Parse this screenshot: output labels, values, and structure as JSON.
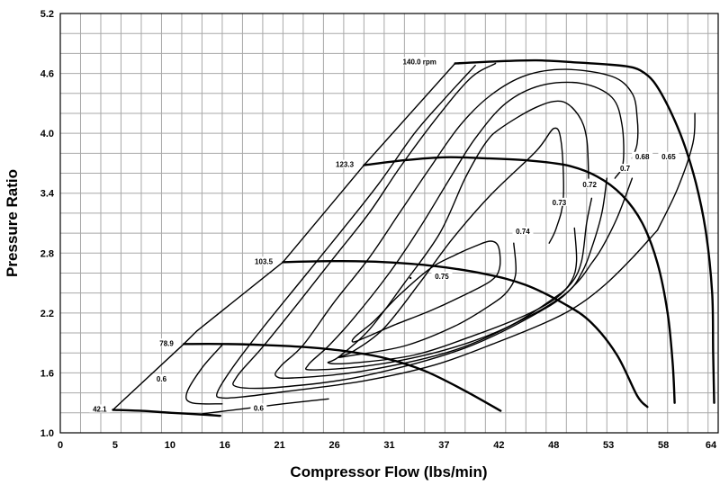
{
  "chart_data": {
    "type": "line",
    "title": "",
    "xlabel": "Compressor Flow (lbs/min)",
    "ylabel": "Pressure Ratio",
    "xlim": [
      0,
      65
    ],
    "ylim": [
      1.0,
      5.2
    ],
    "x_tick_labels": [
      "0",
      "5",
      "10",
      "16",
      "21",
      "26",
      "31",
      "37",
      "42",
      "48",
      "53",
      "58",
      "64"
    ],
    "y_tick_labels": [
      "1.0",
      "1.6",
      "2.2",
      "2.8",
      "3.4",
      "4.0",
      "4.6",
      "5.2"
    ],
    "grid": true,
    "surge_line": [
      [
        5.2,
        1.23
      ],
      [
        12.2,
        1.89
      ],
      [
        13.5,
        2.02
      ],
      [
        22.0,
        2.71
      ],
      [
        30.0,
        3.68
      ],
      [
        39.0,
        4.7
      ]
    ],
    "speed_lines": [
      {
        "label": "42.1",
        "points": [
          [
            5.2,
            1.23
          ],
          [
            8.0,
            1.22
          ],
          [
            11.0,
            1.2
          ],
          [
            14.5,
            1.18
          ],
          [
            15.8,
            1.17
          ]
        ]
      },
      {
        "label": "78.9",
        "points": [
          [
            12.2,
            1.89
          ],
          [
            16.0,
            1.89
          ],
          [
            20.0,
            1.88
          ],
          [
            24.0,
            1.86
          ],
          [
            28.0,
            1.82
          ],
          [
            32.0,
            1.75
          ],
          [
            36.0,
            1.62
          ],
          [
            40.0,
            1.42
          ],
          [
            43.5,
            1.22
          ]
        ]
      },
      {
        "label": "103.5",
        "points": [
          [
            22.0,
            2.71
          ],
          [
            27.0,
            2.72
          ],
          [
            32.0,
            2.71
          ],
          [
            37.0,
            2.67
          ],
          [
            42.0,
            2.59
          ],
          [
            46.0,
            2.48
          ],
          [
            50.0,
            2.28
          ],
          [
            52.5,
            2.1
          ],
          [
            55.0,
            1.78
          ],
          [
            57.0,
            1.37
          ],
          [
            58.0,
            1.26
          ]
        ]
      },
      {
        "label": "123.3",
        "points": [
          [
            30.0,
            3.68
          ],
          [
            34.0,
            3.73
          ],
          [
            38.0,
            3.76
          ],
          [
            42.0,
            3.75
          ],
          [
            46.0,
            3.73
          ],
          [
            50.0,
            3.68
          ],
          [
            53.0,
            3.57
          ],
          [
            55.5,
            3.38
          ],
          [
            57.5,
            3.1
          ],
          [
            59.0,
            2.7
          ],
          [
            60.0,
            2.2
          ],
          [
            60.5,
            1.7
          ],
          [
            60.7,
            1.3
          ]
        ]
      },
      {
        "label": "140.0 rpm",
        "points": [
          [
            39.0,
            4.7
          ],
          [
            43.0,
            4.72
          ],
          [
            47.0,
            4.73
          ],
          [
            51.0,
            4.71
          ],
          [
            54.0,
            4.69
          ],
          [
            56.0,
            4.67
          ],
          [
            57.3,
            4.63
          ],
          [
            58.6,
            4.52
          ],
          [
            60.0,
            4.28
          ],
          [
            61.5,
            3.93
          ],
          [
            62.8,
            3.5
          ],
          [
            63.8,
            3.0
          ],
          [
            64.4,
            2.4
          ],
          [
            64.5,
            1.8
          ],
          [
            64.6,
            1.3
          ]
        ]
      }
    ],
    "efficiency_islands": [
      {
        "label": "0.75",
        "closed": true,
        "points": [
          [
            36.6,
            2.65
          ],
          [
            39.0,
            2.78
          ],
          [
            41.0,
            2.87
          ],
          [
            42.5,
            2.92
          ],
          [
            43.3,
            2.86
          ],
          [
            43.4,
            2.65
          ],
          [
            42.5,
            2.52
          ],
          [
            39.5,
            2.36
          ],
          [
            36.5,
            2.22
          ],
          [
            33.0,
            2.08
          ],
          [
            30.5,
            1.97
          ],
          [
            29.0,
            1.91
          ],
          [
            29.1,
            1.96
          ],
          [
            31.0,
            2.12
          ],
          [
            33.5,
            2.38
          ]
        ]
      },
      {
        "label": "0.74",
        "closed": false,
        "points": [
          [
            44.8,
            2.9
          ],
          [
            45.0,
            2.6
          ],
          [
            44.2,
            2.42
          ],
          [
            42.5,
            2.28
          ],
          [
            39.0,
            2.07
          ],
          [
            34.0,
            1.87
          ],
          [
            28.5,
            1.77
          ],
          [
            27.5,
            1.76
          ],
          [
            29.0,
            1.82
          ],
          [
            32.0,
            2.05
          ],
          [
            35.5,
            2.5
          ],
          [
            38.8,
            2.95
          ],
          [
            42.5,
            3.38
          ],
          [
            47.0,
            3.82
          ],
          [
            48.8,
            4.05
          ],
          [
            49.5,
            3.9
          ],
          [
            49.7,
            3.35
          ],
          [
            49.0,
            3.05
          ],
          [
            48.3,
            2.9
          ]
        ]
      },
      {
        "label": "0.73",
        "closed": false,
        "points": [
          [
            50.8,
            3.05
          ],
          [
            51.0,
            2.72
          ],
          [
            50.5,
            2.52
          ],
          [
            49.0,
            2.35
          ],
          [
            46.0,
            2.18
          ],
          [
            41.0,
            1.98
          ],
          [
            35.0,
            1.78
          ],
          [
            29.0,
            1.7
          ],
          [
            26.5,
            1.7
          ],
          [
            27.5,
            1.76
          ],
          [
            30.5,
            2.03
          ],
          [
            34.0,
            2.5
          ],
          [
            37.5,
            3.0
          ],
          [
            40.0,
            3.55
          ],
          [
            42.0,
            3.9
          ],
          [
            43.5,
            4.05
          ],
          [
            47.0,
            4.26
          ],
          [
            49.5,
            4.32
          ],
          [
            51.2,
            4.18
          ],
          [
            52.0,
            3.95
          ],
          [
            52.2,
            3.55
          ]
        ]
      },
      {
        "label": "0.72",
        "closed": false,
        "points": [
          [
            52.5,
            3.35
          ],
          [
            52.0,
            3.1
          ],
          [
            51.5,
            2.72
          ],
          [
            50.5,
            2.5
          ],
          [
            48.5,
            2.33
          ],
          [
            44.0,
            2.05
          ],
          [
            38.0,
            1.83
          ],
          [
            31.0,
            1.68
          ],
          [
            25.0,
            1.63
          ],
          [
            24.5,
            1.68
          ],
          [
            26.5,
            1.87
          ],
          [
            29.0,
            2.15
          ],
          [
            32.5,
            2.6
          ],
          [
            35.5,
            3.05
          ],
          [
            38.5,
            3.55
          ],
          [
            41.0,
            3.95
          ],
          [
            44.0,
            4.3
          ],
          [
            47.5,
            4.48
          ],
          [
            51.5,
            4.5
          ],
          [
            54.5,
            4.36
          ],
          [
            55.5,
            4.08
          ],
          [
            55.6,
            3.7
          ],
          [
            54.8,
            3.55
          ]
        ]
      },
      {
        "label": "0.7",
        "closed": false,
        "points": [
          [
            54.0,
            3.55
          ],
          [
            53.5,
            3.2
          ],
          [
            52.5,
            2.85
          ],
          [
            51.5,
            2.6
          ],
          [
            50.0,
            2.4
          ],
          [
            46.0,
            2.15
          ],
          [
            39.0,
            1.83
          ],
          [
            30.0,
            1.62
          ],
          [
            23.0,
            1.55
          ],
          [
            21.3,
            1.57
          ],
          [
            21.8,
            1.67
          ],
          [
            24.0,
            1.88
          ],
          [
            27.0,
            2.3
          ],
          [
            30.5,
            2.75
          ],
          [
            33.5,
            3.2
          ],
          [
            36.5,
            3.65
          ],
          [
            39.5,
            4.08
          ],
          [
            42.5,
            4.38
          ],
          [
            46.0,
            4.58
          ],
          [
            50.0,
            4.64
          ],
          [
            54.5,
            4.57
          ],
          [
            56.5,
            4.4
          ],
          [
            57.0,
            4.15
          ],
          [
            57.0,
            3.9
          ],
          [
            56.5,
            3.75
          ]
        ]
      },
      {
        "label": "0.68",
        "closed": false,
        "points": [
          [
            56.5,
            3.55
          ],
          [
            55.0,
            3.15
          ],
          [
            53.5,
            2.85
          ],
          [
            52.5,
            2.7
          ],
          [
            51.0,
            2.5
          ],
          [
            48.0,
            2.25
          ],
          [
            40.0,
            1.85
          ],
          [
            30.0,
            1.57
          ],
          [
            22.0,
            1.46
          ],
          [
            17.5,
            1.46
          ],
          [
            17.5,
            1.57
          ],
          [
            20.0,
            1.86
          ],
          [
            23.5,
            2.3
          ],
          [
            27.0,
            2.75
          ],
          [
            30.5,
            3.2
          ],
          [
            33.5,
            3.65
          ],
          [
            37.0,
            4.13
          ],
          [
            40.5,
            4.55
          ],
          [
            43.0,
            4.7
          ]
        ]
      },
      {
        "label": "0.65",
        "closed": false,
        "points": [
          [
            59.0,
            3.03
          ],
          [
            61.0,
            3.45
          ],
          [
            62.5,
            3.9
          ],
          [
            62.7,
            4.2
          ]
        ]
      },
      {
        "label": "0.65",
        "closed": false,
        "points": [
          [
            59.0,
            3.03
          ],
          [
            56.5,
            2.75
          ],
          [
            54.0,
            2.5
          ],
          [
            51.5,
            2.3
          ],
          [
            48.5,
            2.13
          ],
          [
            43.0,
            1.9
          ],
          [
            37.0,
            1.68
          ],
          [
            30.0,
            1.52
          ],
          [
            22.0,
            1.41
          ],
          [
            18.0,
            1.36
          ],
          [
            16.0,
            1.35
          ],
          [
            15.5,
            1.4
          ],
          [
            17.0,
            1.65
          ],
          [
            20.0,
            2.05
          ],
          [
            24.0,
            2.55
          ],
          [
            28.0,
            3.05
          ],
          [
            31.5,
            3.5
          ],
          [
            35.0,
            4.0
          ],
          [
            38.0,
            4.35
          ],
          [
            41.0,
            4.68
          ]
        ]
      },
      {
        "label": "0.6",
        "closed": false,
        "points": [
          [
            16.0,
            1.29
          ],
          [
            13.0,
            1.3
          ],
          [
            12.5,
            1.4
          ],
          [
            14.0,
            1.65
          ],
          [
            16.0,
            1.88
          ]
        ]
      },
      {
        "label": "0.6",
        "closed": false,
        "points": [
          [
            14.0,
            1.19
          ],
          [
            18.0,
            1.24
          ],
          [
            22.0,
            1.29
          ],
          [
            26.5,
            1.34
          ]
        ]
      }
    ],
    "speed_label_positions": [
      {
        "label": "42.1",
        "x": 3.9,
        "y": 1.23
      },
      {
        "label": "78.9",
        "x": 10.5,
        "y": 1.89
      },
      {
        "label": "103.5",
        "x": 20.1,
        "y": 2.71
      },
      {
        "label": "123.3",
        "x": 28.1,
        "y": 3.68
      },
      {
        "label": "140.0 rpm",
        "x": 35.5,
        "y": 4.71
      }
    ],
    "efficiency_label_positions": [
      {
        "label": "0.75",
        "x": 37.7,
        "y": 2.56
      },
      {
        "label": "0.74",
        "x": 45.7,
        "y": 3.01
      },
      {
        "label": "0.73",
        "x": 49.3,
        "y": 3.3
      },
      {
        "label": "0.72",
        "x": 52.3,
        "y": 3.48
      },
      {
        "label": "0.7",
        "x": 55.8,
        "y": 3.64
      },
      {
        "label": "0.68",
        "x": 57.5,
        "y": 3.76
      },
      {
        "label": "0.65",
        "x": 60.1,
        "y": 3.76
      },
      {
        "label": "0.6",
        "x": 10.0,
        "y": 1.53
      },
      {
        "label": "0.6",
        "x": 19.6,
        "y": 1.24
      }
    ]
  }
}
